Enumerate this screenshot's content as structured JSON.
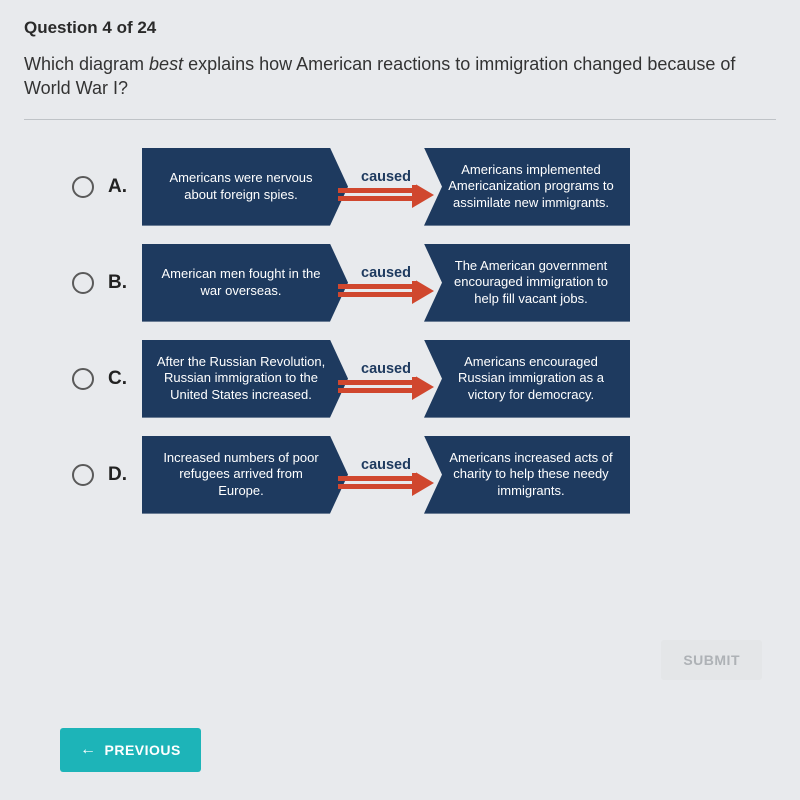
{
  "header": "Question 4 of 24",
  "question_html": "Which diagram <em>best</em> explains how American reactions to immigration changed because of World War I?",
  "arrow_label": "caused",
  "options": [
    {
      "letter": "A.",
      "left": "Americans were nervous about foreign spies.",
      "right": "Americans implemented Americanization programs to assimilate new immigrants."
    },
    {
      "letter": "B.",
      "left": "American men fought in the war overseas.",
      "right": "The American government encouraged immigration to help fill vacant jobs."
    },
    {
      "letter": "C.",
      "left": "After the Russian Revolution, Russian immigration to the United States increased.",
      "right": "Americans encouraged Russian immigration as a victory for democracy."
    },
    {
      "letter": "D.",
      "left": "Increased numbers of poor refugees arrived from Europe.",
      "right": "Americans increased acts of charity to help these needy immigrants."
    }
  ],
  "buttons": {
    "submit": "SUBMIT",
    "previous": "PREVIOUS"
  },
  "colors": {
    "box_bg": "#1e3a5f",
    "arrow": "#d0472e",
    "prev_bg": "#1db4b8",
    "page_bg": "#e8eaed"
  }
}
